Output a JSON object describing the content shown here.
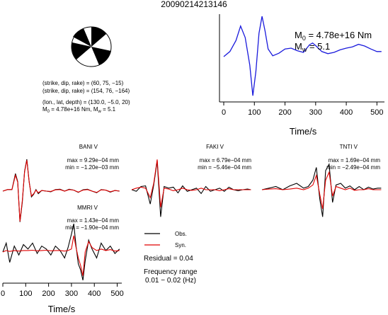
{
  "title": "20090214213146",
  "mechanism": {
    "line1": "(strike, dip, rake) = (60, 75, −15)",
    "line2": "(strike, dip, rake) = (154, 76, −164)",
    "line3": "(lon., lat, depth) = (130.0, −5.0, 20)",
    "line4_pre": "M",
    "line4_sub": "0",
    "line4_mid": " = 4.78e+16 Nm, M",
    "line4_sub2": "w",
    "line4_post": " = 5.1"
  },
  "stf": {
    "m0_sym": "M",
    "m0_sub": "0",
    "m0_val": " = 4.78e+16 Nm",
    "mw_sym": "M",
    "mw_sub": "w",
    "mw_val": " = 5.1",
    "xlabel": "Time/s",
    "ticks": [
      "0",
      "100",
      "200",
      "300",
      "400",
      "500"
    ]
  },
  "stations": [
    {
      "name": "BANI V",
      "max": "max = 9.29e−04 mm",
      "min": "min = −1.20e−03 mm"
    },
    {
      "name": "FAKI V",
      "max": "max = 6.79e−04 mm",
      "min": "min = −5.46e−04 mm"
    },
    {
      "name": "TNTI V",
      "max": "max = 1.69e−04 mm",
      "min": "min = −2.49e−04 mm"
    },
    {
      "name": "MMRI V",
      "max": "max = 1.43e−04 mm",
      "min": "min = −1.90e−04 mm"
    }
  ],
  "legend": {
    "obs": "Obs.",
    "syn": "Syn.",
    "residual": "Residual = 0.04",
    "freq1": "Frequency range",
    "freq2": "0.01 − 0.02 (Hz)"
  },
  "bottom_axis": {
    "xlabel": "Time/s",
    "ticks": [
      "0",
      "100",
      "200",
      "300",
      "400",
      "500"
    ]
  },
  "colors": {
    "stf": "#1a1adc",
    "obs": "#000000",
    "syn": "#e00000"
  },
  "chart_data": [
    {
      "type": "line",
      "xlim": [
        0,
        520
      ],
      "series": [
        {
          "x": [
            0,
            20,
            40,
            55,
            70,
            85,
            95,
            105,
            115,
            125,
            135,
            145,
            160,
            180,
            200,
            220,
            240,
            260,
            280,
            290,
            300,
            320,
            340,
            360,
            380,
            400,
            420,
            440,
            460,
            480,
            500,
            515
          ],
          "values": [
            0.0,
            0.12,
            0.38,
            0.72,
            0.45,
            -0.2,
            -0.92,
            -0.35,
            0.55,
            0.95,
            0.6,
            0.18,
            0.02,
            0.08,
            0.18,
            0.2,
            0.14,
            0.1,
            0.28,
            0.32,
            0.26,
            0.12,
            0.07,
            0.1,
            0.16,
            0.2,
            0.23,
            0.29,
            0.25,
            0.18,
            0.12,
            0.12
          ]
        }
      ]
    },
    {
      "type": "line",
      "xlim": [
        0,
        520
      ],
      "series": [
        {
          "name": "Obs.",
          "x": [
            0,
            20,
            40,
            55,
            65,
            75,
            85,
            95,
            105,
            115,
            125,
            135,
            145,
            155,
            170,
            190,
            210,
            230,
            250,
            270,
            290,
            310,
            330,
            350,
            370,
            390,
            410,
            430,
            450,
            470,
            490,
            510
          ],
          "values": [
            0.0,
            0.05,
            0.05,
            0.55,
            0.3,
            -0.97,
            -0.35,
            0.62,
            1.0,
            0.3,
            -0.18,
            -0.1,
            0.05,
            -0.08,
            0.02,
            0.0,
            -0.02,
            0.05,
            0.06,
            0.0,
            0.06,
            0.03,
            -0.04,
            0.04,
            0.06,
            0.0,
            -0.05,
            0.05,
            0.03,
            -0.03,
            0.02,
            0.0
          ]
        },
        {
          "name": "Syn.",
          "x": [
            0,
            20,
            40,
            55,
            65,
            75,
            85,
            95,
            105,
            115,
            125,
            135,
            145,
            155,
            170,
            190,
            210,
            230,
            250,
            270,
            290,
            310,
            330,
            350,
            370,
            390,
            410,
            430,
            450,
            470,
            490,
            510
          ],
          "values": [
            0.0,
            0.05,
            0.05,
            0.5,
            0.28,
            -0.95,
            -0.3,
            0.6,
            0.97,
            0.28,
            -0.15,
            -0.08,
            0.03,
            -0.05,
            0.02,
            0.0,
            -0.01,
            0.04,
            0.05,
            0.0,
            0.05,
            0.03,
            -0.03,
            0.03,
            0.05,
            0.0,
            -0.04,
            0.04,
            0.03,
            -0.02,
            0.02,
            0.0
          ]
        }
      ]
    },
    {
      "type": "line",
      "xlim": [
        0,
        520
      ],
      "series": [
        {
          "name": "Obs.",
          "x": [
            0,
            20,
            40,
            60,
            80,
            95,
            110,
            125,
            140,
            160,
            180,
            200,
            220,
            240,
            260,
            280,
            300,
            320,
            340,
            360,
            380,
            400,
            420,
            440,
            460,
            480,
            500,
            515
          ],
          "values": [
            0.0,
            -0.05,
            0.1,
            0.12,
            -0.45,
            0.15,
            0.9,
            -0.85,
            0.1,
            0.05,
            0.08,
            -0.1,
            0.12,
            -0.05,
            0.0,
            0.05,
            -0.12,
            0.1,
            -0.05,
            0.0,
            0.05,
            -0.05,
            0.08,
            0.0,
            -0.03,
            0.0,
            0.02,
            0.0
          ]
        },
        {
          "name": "Syn.",
          "x": [
            0,
            20,
            40,
            60,
            80,
            95,
            110,
            125,
            140,
            160,
            180,
            200,
            220,
            240,
            260,
            280,
            300,
            320,
            340,
            360,
            380,
            400,
            420,
            440,
            460,
            480,
            500,
            515
          ],
          "values": [
            0.0,
            0.05,
            0.08,
            0.05,
            -0.25,
            0.2,
            0.95,
            -0.55,
            0.05,
            0.02,
            -0.03,
            0.0,
            0.05,
            0.0,
            -0.02,
            0.0,
            0.05,
            0.0,
            0.0,
            0.0,
            -0.03,
            0.0,
            0.03,
            0.0,
            0.0,
            0.0,
            0.0,
            0.0
          ]
        }
      ]
    },
    {
      "type": "line",
      "xlim": [
        0,
        520
      ],
      "series": [
        {
          "name": "Obs.",
          "x": [
            0,
            30,
            60,
            90,
            120,
            150,
            180,
            200,
            220,
            235,
            250,
            262,
            275,
            290,
            305,
            320,
            340,
            360,
            380,
            400,
            420,
            440,
            460,
            480,
            500,
            515
          ],
          "values": [
            0.0,
            0.05,
            0.1,
            0.0,
            0.12,
            0.2,
            0.05,
            0.1,
            0.3,
            0.7,
            -0.3,
            -0.85,
            0.6,
            0.8,
            -0.4,
            0.15,
            0.2,
            0.05,
            0.12,
            0.0,
            0.1,
            0.0,
            0.08,
            0.02,
            0.05,
            0.05
          ]
        },
        {
          "name": "Syn.",
          "x": [
            0,
            30,
            60,
            90,
            120,
            150,
            180,
            200,
            220,
            235,
            250,
            262,
            275,
            290,
            305,
            320,
            340,
            360,
            380,
            400,
            420,
            440,
            460,
            480,
            500,
            515
          ],
          "values": [
            0.0,
            0.02,
            0.03,
            0.0,
            0.02,
            0.05,
            0.0,
            0.05,
            0.15,
            0.45,
            -0.15,
            -0.6,
            0.3,
            0.55,
            -0.2,
            0.1,
            0.05,
            0.0,
            0.05,
            -0.02,
            0.0,
            0.0,
            0.03,
            0.0,
            0.0,
            0.0
          ]
        }
      ]
    },
    {
      "type": "line",
      "xlim": [
        0,
        520
      ],
      "series": [
        {
          "name": "Obs.",
          "x": [
            0,
            15,
            30,
            50,
            70,
            90,
            110,
            130,
            150,
            170,
            190,
            210,
            230,
            250,
            270,
            285,
            300,
            310,
            320,
            330,
            340,
            350,
            360,
            375,
            390,
            410,
            430,
            450,
            470,
            490,
            510
          ],
          "values": [
            0.0,
            0.3,
            -0.35,
            0.2,
            -0.1,
            0.25,
            0.1,
            0.3,
            -0.05,
            0.2,
            0.1,
            -0.1,
            0.2,
            0.05,
            -0.2,
            0.15,
            0.6,
            0.95,
            0.2,
            -0.4,
            -0.6,
            -0.95,
            -0.3,
            0.4,
            0.1,
            -0.2,
            0.3,
            0.05,
            0.2,
            -0.05,
            0.1
          ]
        },
        {
          "name": "Syn.",
          "x": [
            0,
            15,
            30,
            50,
            70,
            90,
            110,
            130,
            150,
            170,
            190,
            210,
            230,
            250,
            270,
            285,
            300,
            310,
            320,
            330,
            340,
            350,
            360,
            375,
            390,
            410,
            430,
            450,
            470,
            490,
            510
          ],
          "values": [
            0.0,
            0.05,
            0.02,
            0.05,
            0.03,
            0.05,
            0.05,
            0.06,
            0.04,
            0.05,
            0.06,
            0.04,
            0.05,
            0.05,
            0.03,
            0.05,
            0.1,
            0.55,
            0.15,
            -0.2,
            -0.45,
            -0.8,
            0.0,
            0.35,
            0.15,
            0.05,
            0.1,
            0.05,
            0.08,
            0.03,
            0.05
          ]
        }
      ]
    }
  ]
}
